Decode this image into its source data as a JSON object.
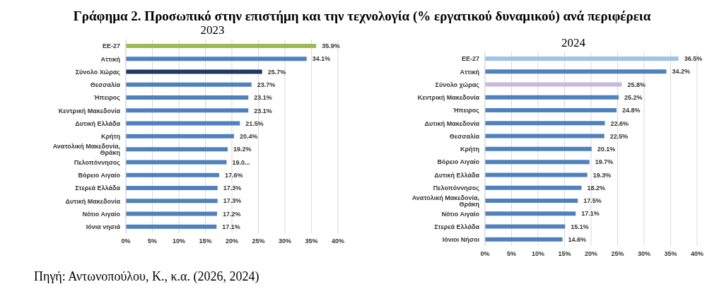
{
  "chart_data": [
    {
      "type": "bar",
      "orientation": "horizontal",
      "title": "Γράφημα 2. Προσωπικό στην επιστήμη και την τεχνολογία (% εργατικού δυναμικού) ανά περιφέρεια",
      "subtitle": "2023",
      "annotations": [
        "Πηγή: Αντωνοπούλου, Κ., κ.α. (2026, 2024)"
      ],
      "categories": [
        "ΕΕ-27",
        "Αττική",
        "Σύνολο Χώρας",
        "Θεσσαλία",
        "Ήπειρος",
        "Κεντρική Μακεδονία",
        "Δυτική Ελλάδα",
        "Κρήτη",
        "Ανατολική Μακεδονία, Θράκη",
        "Πελοπόννησος",
        "Βόρειο Αιγαίο",
        "Στερεά Ελλάδα",
        "Δυτική Μακεδονία",
        "Νότιο Αιγαίο",
        "Ιόνια νησιά"
      ],
      "values": [
        35.9,
        34.1,
        25.7,
        23.7,
        23.1,
        23.1,
        21.5,
        20.4,
        19.2,
        19.0,
        17.6,
        17.3,
        17.3,
        17.2,
        17.1
      ],
      "value_labels": [
        "35.9%",
        "34.1%",
        "25.7%",
        "23.7%",
        "23.1%",
        "23.1%",
        "21.5%",
        "20.4%",
        "19.2%",
        "19.0...",
        "17.6%",
        "17.3%",
        "17.3%",
        "17.2%",
        "17.1%"
      ],
      "colors": [
        "#9bbb59",
        "#4f81bd",
        "#1f3864",
        "#4f81bd",
        "#4f81bd",
        "#4f81bd",
        "#4f81bd",
        "#4f81bd",
        "#4f81bd",
        "#4f81bd",
        "#4f81bd",
        "#4f81bd",
        "#4f81bd",
        "#4f81bd",
        "#4f81bd"
      ],
      "xlim": [
        0,
        40
      ],
      "xticks": [
        {
          "value": 0,
          "label": "0%"
        },
        {
          "value": 5,
          "label": "5%"
        },
        {
          "value": 10,
          "label": "10%"
        },
        {
          "value": 15,
          "label": "15%"
        },
        {
          "value": 20,
          "label": "20%"
        },
        {
          "value": 25,
          "label": "25%"
        },
        {
          "value": 30,
          "label": "30%"
        },
        {
          "value": 35,
          "label": "35%"
        },
        {
          "value": 40,
          "label": "40%"
        }
      ],
      "grid": "x",
      "legend": false
    },
    {
      "type": "bar",
      "orientation": "horizontal",
      "subtitle": "2024",
      "categories": [
        "ΕΕ-27",
        "Αττική",
        "Σύνολο χώρας",
        "Κεντρική Μακεδονία",
        "Ήπειρος",
        "Δυτική Μακεδονία",
        "Θεσσαλία",
        "Κρήτη",
        "Βόρειο Αιγαίο",
        "Δυτική Ελλάδα",
        "Πελοπόννησος",
        "Ανατολική Μακεδονία, Θράκη",
        "Νότιο Αιγαίο",
        "Στερεά Ελλάδα",
        "Ιόνιοι Νήσοι"
      ],
      "values": [
        36.5,
        34.2,
        25.8,
        25.2,
        24.8,
        22.6,
        22.5,
        20.1,
        19.7,
        19.3,
        18.2,
        17.5,
        17.1,
        15.1,
        14.6
      ],
      "value_labels": [
        "36.5%",
        "34.2%",
        "25.8%",
        "25.2%",
        "24.8%",
        "22.6%",
        "22.5%",
        "20.1%",
        "19.7%",
        "19.3%",
        "18.2%",
        "17.5%",
        "17.1%",
        "15.1%",
        "14.6%"
      ],
      "colors": [
        "#9dc3e6",
        "#4f81bd",
        "#c9b9dc",
        "#4f81bd",
        "#4f81bd",
        "#4f81bd",
        "#4f81bd",
        "#4f81bd",
        "#4f81bd",
        "#4f81bd",
        "#4f81bd",
        "#4f81bd",
        "#4f81bd",
        "#4f81bd",
        "#4f81bd"
      ],
      "xlim": [
        0,
        40
      ],
      "xticks": [
        {
          "value": 0,
          "label": "0%"
        },
        {
          "value": 5,
          "label": "5%"
        },
        {
          "value": 10,
          "label": "10%"
        },
        {
          "value": 15,
          "label": "15%"
        },
        {
          "value": 20,
          "label": "20%"
        },
        {
          "value": 25,
          "label": "25%"
        },
        {
          "value": 30,
          "label": "30%"
        },
        {
          "value": 35,
          "label": "35%"
        },
        {
          "value": 40,
          "label": "40%"
        }
      ],
      "grid": "x",
      "legend": false
    }
  ]
}
